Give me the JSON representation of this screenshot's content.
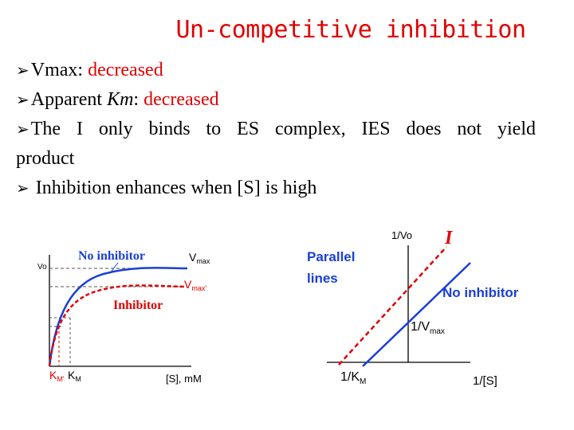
{
  "title": "Un-competitive inhibition",
  "bullets": {
    "b1_label": "Vmax:",
    "b1_value": "decreased",
    "b2_label": "Apparent ",
    "b2_km": "Km",
    "b2_sep": ":",
    "b2_value": " decreased",
    "b3_line1": "The I only binds to ES complex, IES does not yield",
    "b3_line2": "product",
    "b4": " Inhibition enhances when [S] is high"
  },
  "left_plot": {
    "y_axis_label": "Vo",
    "x_axis_label": "[S], mM",
    "vmax_label": "V",
    "vmax_sub": "max",
    "vmax_prime_label": "V",
    "vmax_prime_sub": "max'",
    "no_inhibitor_label": "No inhibitor",
    "inhibitor_label": "Inhibitor",
    "km_prime_label": "K",
    "km_prime_sub": "M'",
    "km_label": "K",
    "km_sub": "M",
    "colors": {
      "no_inhibitor": "#1a3fd6",
      "inhibitor": "#e00000"
    }
  },
  "right_plot": {
    "y_axis_label": "1/Vo",
    "x_axis_label": "1/[S]",
    "parallel_label_1": "Parallel",
    "parallel_label_2": "lines",
    "inhibitor_label": "I",
    "no_inhibitor_label": "No inhibitor",
    "intercept_label": "1/V",
    "intercept_sub": "max",
    "x_intercept_label": "1/K",
    "x_intercept_sub": "M",
    "colors": {
      "no_inhibitor": "#1a3fd6",
      "inhibitor": "#e00000",
      "labels": "#1a3fd6"
    }
  }
}
